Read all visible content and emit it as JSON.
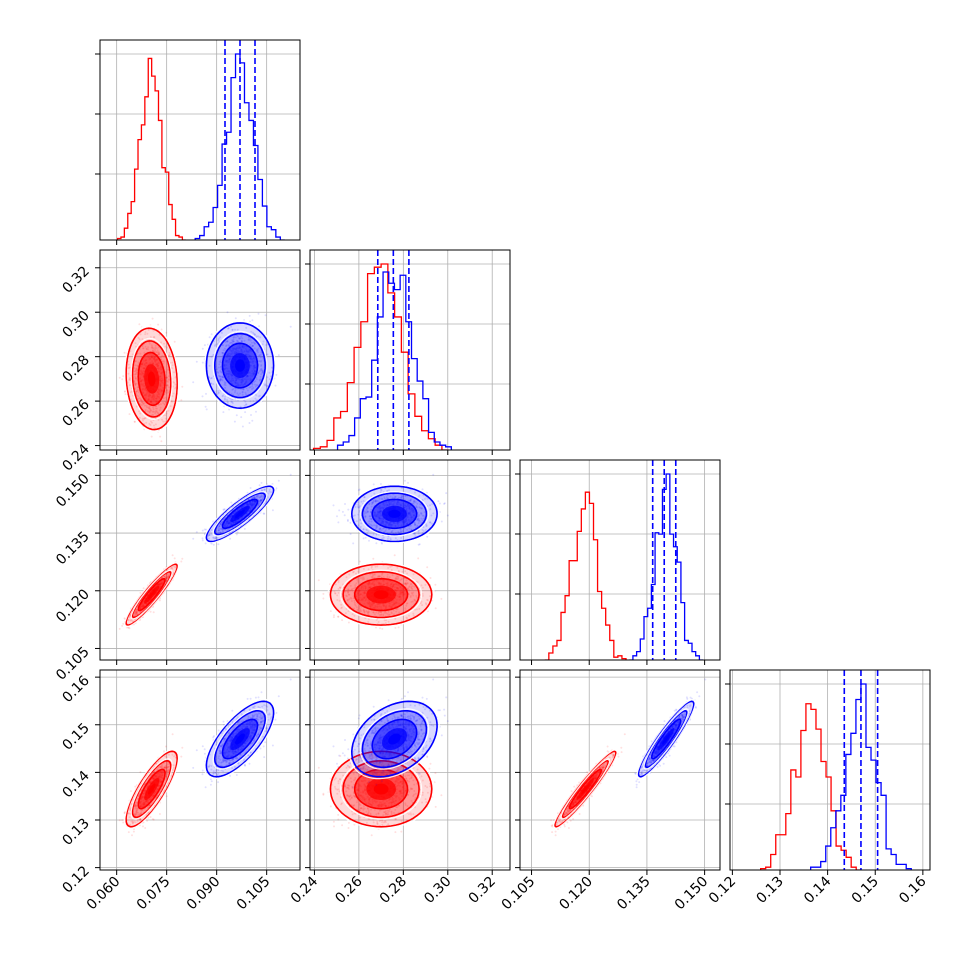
{
  "chart_data": {
    "type": "scatter",
    "kind": "corner_plot",
    "title": "",
    "parameters": [
      {
        "name": "",
        "range": [
          0.055,
          0.115
        ],
        "ticks": [
          "0.060",
          "0.075",
          "0.090",
          "0.105"
        ],
        "tick_values": [
          0.06,
          0.075,
          0.09,
          0.105
        ]
      },
      {
        "name": "",
        "range": [
          0.238,
          0.328
        ],
        "ticks": [
          "0.24",
          "0.26",
          "0.28",
          "0.30",
          "0.32"
        ],
        "tick_values": [
          0.24,
          0.26,
          0.28,
          0.3,
          0.32
        ]
      },
      {
        "name": "",
        "range": [
          0.102,
          0.154
        ],
        "ticks": [
          "0.105",
          "0.120",
          "0.135",
          "0.150"
        ],
        "tick_values": [
          0.105,
          0.12,
          0.135,
          0.15
        ]
      },
      {
        "name": "",
        "range": [
          0.1195,
          0.1615
        ],
        "ticks": [
          "0.12",
          "0.13",
          "0.14",
          "0.15",
          "0.16"
        ],
        "tick_values": [
          0.12,
          0.13,
          0.14,
          0.15,
          0.16
        ]
      }
    ],
    "series": [
      {
        "color": "#ff0000",
        "mean": [
          0.0705,
          0.27,
          0.119,
          0.1365
        ],
        "std": [
          0.0032,
          0.0095,
          0.0033,
          0.0033
        ],
        "correlation": [
          [
            1.0,
            -0.1,
            0.92,
            0.8
          ],
          [
            -0.1,
            1.0,
            0.0,
            0.0
          ],
          [
            0.92,
            0.0,
            1.0,
            0.95
          ],
          [
            0.8,
            0.0,
            0.95,
            1.0
          ]
        ]
      },
      {
        "color": "#0000ff",
        "mean": [
          0.097,
          0.276,
          0.14,
          0.147
        ],
        "std": [
          0.0042,
          0.008,
          0.003,
          0.0033
        ],
        "correlation": [
          [
            1.0,
            0.0,
            0.85,
            0.7
          ],
          [
            0.0,
            1.0,
            0.0,
            0.35
          ],
          [
            0.85,
            0.0,
            1.0,
            0.92
          ],
          [
            0.7,
            0.35,
            0.92,
            1.0
          ]
        ],
        "quantiles": [
          [
            0.0925,
            0.097,
            0.1015
          ],
          [
            0.2685,
            0.2755,
            0.2825
          ],
          [
            0.1365,
            0.1395,
            0.1425
          ],
          [
            0.1435,
            0.147,
            0.1505
          ]
        ]
      }
    ],
    "grid": true,
    "legend": "none"
  }
}
